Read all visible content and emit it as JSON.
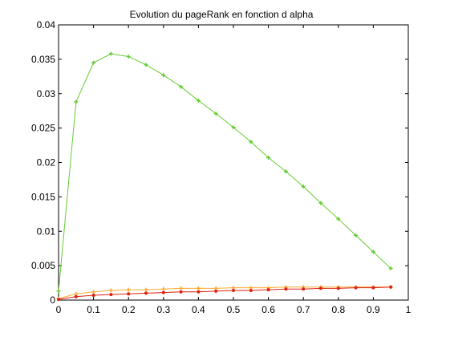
{
  "chart_data": {
    "type": "line",
    "title": "Evolution du pageRank en fonction d alpha",
    "xlabel": "",
    "ylabel": "",
    "xlim": [
      0,
      1
    ],
    "ylim": [
      0,
      0.04
    ],
    "grid": false,
    "legend": "none",
    "x_ticks": [
      "0",
      "0.1",
      "0.2",
      "0.3",
      "0.4",
      "0.5",
      "0.6",
      "0.7",
      "0.8",
      "0.9",
      "1"
    ],
    "y_ticks": [
      "0",
      "0.005",
      "0.01",
      "0.015",
      "0.02",
      "0.025",
      "0.03",
      "0.035",
      "0.04"
    ],
    "x": [
      0,
      0.05,
      0.1,
      0.15,
      0.2,
      0.25,
      0.3,
      0.35,
      0.4,
      0.45,
      0.5,
      0.55,
      0.6,
      0.65,
      0.7,
      0.75,
      0.8,
      0.85,
      0.9,
      0.95
    ],
    "series": [
      {
        "color": "#66cc33",
        "marker": "plus",
        "values": [
          0.0013,
          0.0288,
          0.0345,
          0.0358,
          0.0354,
          0.0342,
          0.0327,
          0.031,
          0.029,
          0.0271,
          0.0251,
          0.023,
          0.0207,
          0.0187,
          0.0165,
          0.0141,
          0.0118,
          0.0094,
          0.007,
          0.0046
        ]
      },
      {
        "color": "#ffaa33",
        "marker": "plus",
        "values": [
          0.0002,
          0.0009,
          0.0012,
          0.0014,
          0.0015,
          0.0015,
          0.0016,
          0.0017,
          0.0017,
          0.0017,
          0.0018,
          0.0018,
          0.0018,
          0.0019,
          0.0019,
          0.0019,
          0.0019,
          0.0019,
          0.0019,
          0.0019
        ]
      },
      {
        "color": "#dd2211",
        "marker": "dot",
        "values": [
          0.0001,
          0.0005,
          0.0007,
          0.0008,
          0.0009,
          0.001,
          0.0011,
          0.0012,
          0.0012,
          0.0013,
          0.0014,
          0.0014,
          0.0015,
          0.0016,
          0.0016,
          0.0017,
          0.0017,
          0.0018,
          0.0018,
          0.0019
        ]
      }
    ]
  }
}
